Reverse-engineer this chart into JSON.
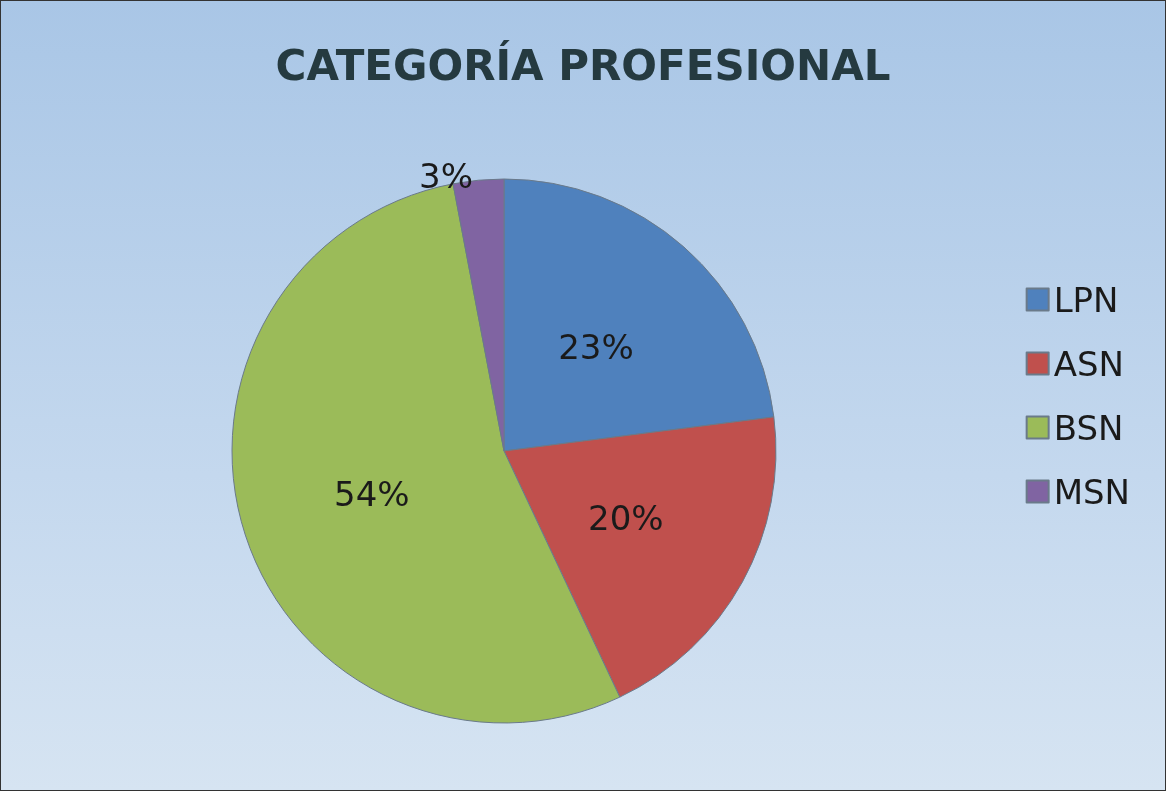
{
  "chart_data": {
    "type": "pie",
    "title": "CATEGORÍA PROFESIONAL",
    "categories": [
      "LPN",
      "ASN",
      "BSN",
      "MSN"
    ],
    "values": [
      23,
      20,
      54,
      3
    ],
    "value_labels": [
      "23%",
      "20%",
      "54%",
      "3%"
    ],
    "colors": [
      "#4f81bd",
      "#c0504d",
      "#9bbb59",
      "#8064a2"
    ],
    "legend": "right"
  }
}
